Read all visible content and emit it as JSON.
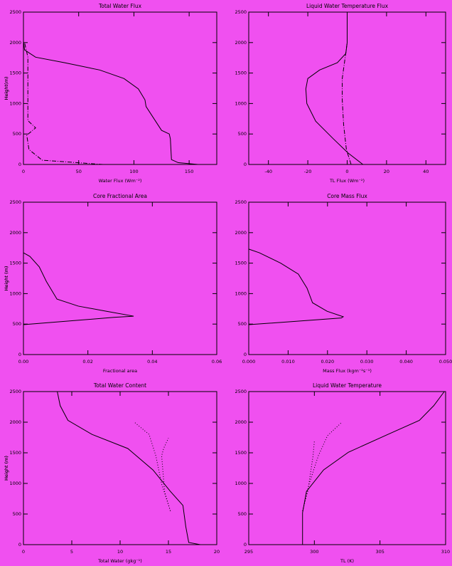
{
  "chart_data": [
    {
      "type": "line",
      "title": "Total Water Flux",
      "xlabel": "Water Flux (Wm⁻²)",
      "ylabel": "Height(m)",
      "xlim": [
        0,
        175
      ],
      "ylim": [
        0,
        2500
      ],
      "xticks": [
        0,
        50,
        100,
        150
      ],
      "yticks": [
        0,
        500,
        1000,
        1500,
        2000,
        2500
      ],
      "series": [
        {
          "color": "#000000",
          "style": "solid",
          "values": [
            158,
            140,
            134,
            133,
            132,
            125,
            111,
            110,
            104,
            91,
            69,
            37,
            11,
            1,
            0
          ],
          "heights": [
            0,
            30,
            80,
            420,
            500,
            560,
            950,
            1060,
            1240,
            1410,
            1550,
            1670,
            1760,
            1880,
            2020
          ]
        },
        {
          "color": "#000000",
          "style": "dashdot",
          "values": [
            72,
            17,
            5,
            3,
            11,
            4,
            4,
            4,
            4,
            1
          ],
          "heights": [
            0,
            70,
            245,
            480,
            600,
            720,
            950,
            1300,
            1760,
            2000
          ]
        }
      ]
    },
    {
      "type": "line",
      "title": "Liquid Water Temperature Flux",
      "xlabel": "TL Flux (Wm⁻²)",
      "ylabel": "Height(m)",
      "xlim": [
        -50,
        50
      ],
      "ylim": [
        0,
        2500
      ],
      "xticks": [
        -40,
        -20,
        0,
        20,
        40
      ],
      "yticks": [
        0,
        500,
        1000,
        1500,
        2000,
        2500
      ],
      "series": [
        {
          "color": "#000000",
          "style": "solid",
          "values": [
            8,
            0.4,
            -7,
            -16,
            -20.5,
            -21,
            -20,
            -14,
            -5,
            -0.7,
            0,
            0
          ],
          "heights": [
            0,
            190,
            420,
            710,
            1000,
            1240,
            1410,
            1550,
            1670,
            1820,
            2000,
            2500
          ]
        },
        {
          "color": "#000000",
          "style": "dashdot",
          "values": [
            2,
            -0.4,
            -1.8,
            -2.5,
            -2.5,
            -1,
            0
          ],
          "heights": [
            0,
            245,
            650,
            1060,
            1410,
            1760,
            2000
          ]
        }
      ]
    },
    {
      "type": "line",
      "title": "Core Fractional Area",
      "xlabel": "Fractional area",
      "ylabel": "Height (m)",
      "xlim": [
        0,
        0.06
      ],
      "ylim": [
        0,
        2500
      ],
      "xticks": [
        {
          "value": 0,
          "label": "0.00"
        },
        {
          "value": 0.02,
          "label": "0.02"
        },
        {
          "value": 0.04,
          "label": "0.04"
        },
        {
          "value": 0.06,
          "label": "0.06"
        }
      ],
      "yticks": [
        0,
        500,
        1000,
        1500,
        2000,
        2500
      ],
      "series": [
        {
          "color": "#000000",
          "style": "solid",
          "values": [
            0,
            0.028,
            0.0342,
            0.0258,
            0.017,
            0.0104,
            0.0071,
            0.0049,
            0.002,
            0
          ],
          "heights": [
            490,
            610,
            630,
            710,
            795,
            910,
            1200,
            1440,
            1610,
            1670
          ]
        }
      ]
    },
    {
      "type": "line",
      "title": "Core Mass Flux",
      "xlabel": "Mass Flux (kgm⁻²s⁻¹)",
      "ylabel": "Height (m)",
      "xlim": [
        0,
        0.05
      ],
      "ylim": [
        0,
        2500
      ],
      "xticks": [
        {
          "value": 0,
          "label": "0.000"
        },
        {
          "value": 0.01,
          "label": "0.010"
        },
        {
          "value": 0.02,
          "label": "0.020"
        },
        {
          "value": 0.03,
          "label": "0.030"
        },
        {
          "value": 0.04,
          "label": "0.040"
        },
        {
          "value": 0.05,
          "label": "0.050"
        }
      ],
      "yticks": [
        0,
        500,
        1000,
        1500,
        2000,
        2500
      ],
      "series": [
        {
          "color": "#000000",
          "style": "solid",
          "values": [
            0,
            0.0235,
            0.024,
            0.0199,
            0.0162,
            0.0148,
            0.0126,
            0.0081,
            0.0027,
            0
          ],
          "heights": [
            490,
            600,
            620,
            710,
            850,
            1090,
            1320,
            1500,
            1670,
            1730
          ]
        }
      ]
    },
    {
      "type": "line",
      "title": "Total Water Content",
      "xlabel": "Total Water (gkg⁻¹)",
      "ylabel": "Height (m)",
      "xlim": [
        0,
        20
      ],
      "ylim": [
        0,
        2500
      ],
      "xticks": [
        0,
        5,
        10,
        15,
        20
      ],
      "yticks": [
        0,
        500,
        1000,
        1500,
        2000,
        2500
      ],
      "series": [
        {
          "color": "#000000",
          "style": "solid",
          "values": [
            18.3,
            17.1,
            16.8,
            16.5,
            15.2,
            13.4,
            10.8,
            7.1,
            4.6,
            3.8,
            3.5
          ],
          "heights": [
            0,
            35,
            290,
            640,
            870,
            1220,
            1570,
            1800,
            2030,
            2270,
            2500
          ]
        },
        {
          "color": "#000000",
          "style": "dotted",
          "values": [
            15.2,
            14.3,
            13.7,
            13.0,
            11.4
          ],
          "heights": [
            550,
            990,
            1450,
            1800,
            2010
          ]
        },
        {
          "color": "#000000",
          "style": "dotted",
          "values": [
            15.2,
            14.6,
            14.3,
            14.5,
            15.0
          ],
          "heights": [
            550,
            870,
            1450,
            1570,
            1740
          ]
        }
      ]
    },
    {
      "type": "line",
      "title": "Liquid Water Temperature",
      "xlabel": "TL (K)",
      "ylabel": "Height (m)",
      "xlim": [
        295,
        310
      ],
      "ylim": [
        0,
        2500
      ],
      "xticks": [
        295,
        300,
        305,
        310
      ],
      "yticks": [
        0,
        500,
        1000,
        1500,
        2000,
        2500
      ],
      "series": [
        {
          "color": "#000000",
          "style": "solid",
          "values": [
            297.2,
            299.1,
            299.1,
            299.4,
            300.7,
            302.6,
            305.6,
            308.0,
            309.1,
            309.9
          ],
          "heights": [
            0,
            0,
            520,
            870,
            1220,
            1510,
            1800,
            2030,
            2270,
            2500
          ]
        },
        {
          "color": "#000000",
          "style": "dotted",
          "values": [
            299.1,
            299.6,
            300.3,
            301.0,
            302.1
          ],
          "heights": [
            550,
            990,
            1450,
            1780,
            2000
          ]
        },
        {
          "color": "#000000",
          "style": "dotted",
          "values": [
            299.1,
            299.5,
            299.9,
            300.0
          ],
          "heights": [
            550,
            870,
            1450,
            1690
          ]
        }
      ]
    }
  ]
}
